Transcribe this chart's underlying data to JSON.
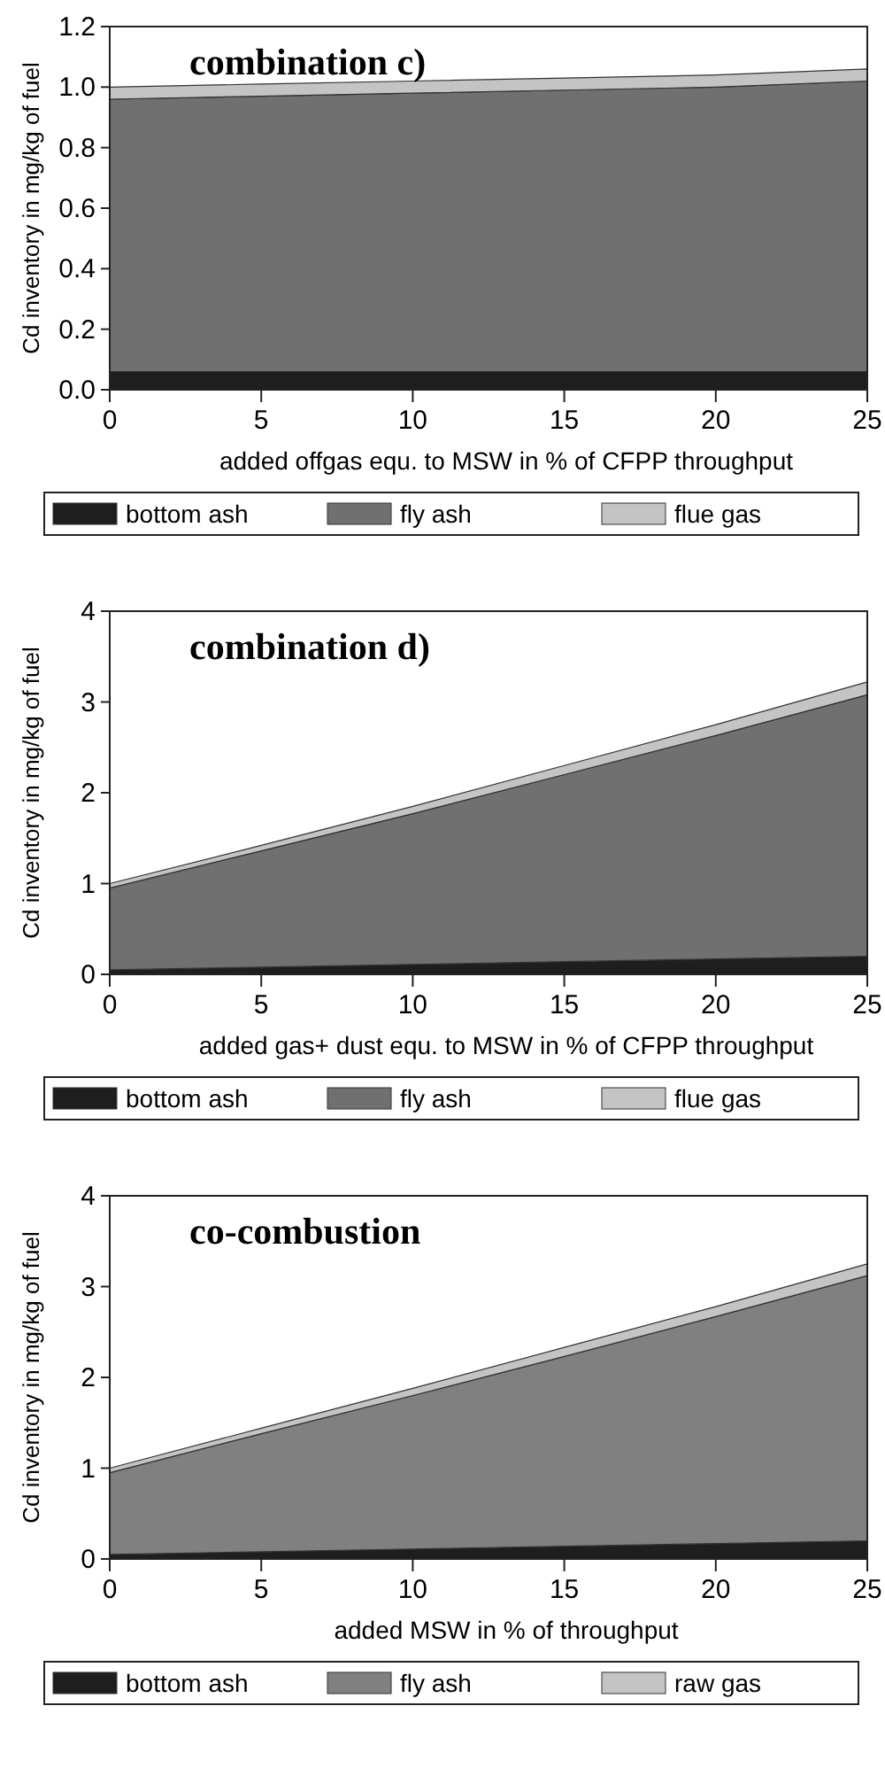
{
  "chart_data": [
    {
      "type": "area",
      "stacked": true,
      "title": "combination c)",
      "xlabel": "added offgas equ. to MSW in % of CFPP throughput",
      "ylabel": "Cd inventory in mg/kg of fuel",
      "x": [
        0,
        5,
        10,
        15,
        20,
        25
      ],
      "xlim": [
        0,
        25
      ],
      "ylim": [
        0,
        1.2
      ],
      "xticks": [
        0,
        5,
        10,
        15,
        20,
        25
      ],
      "yticks": [
        {
          "value": 0,
          "label": "0.0"
        },
        0.2,
        0.4,
        0.6,
        0.8,
        {
          "value": 1,
          "label": "1.0"
        },
        1.2
      ],
      "legend": "bottom",
      "series": [
        {
          "name": "bottom ash",
          "color": "#1e1e1e",
          "values": [
            0.06,
            0.06,
            0.06,
            0.06,
            0.06,
            0.06
          ]
        },
        {
          "name": "fly ash",
          "color": "#707070",
          "values": [
            0.9,
            0.91,
            0.92,
            0.93,
            0.94,
            0.96
          ]
        },
        {
          "name": "flue gas",
          "color": "#c4c4c4",
          "values": [
            0.04,
            0.04,
            0.04,
            0.04,
            0.04,
            0.04
          ]
        }
      ]
    },
    {
      "type": "area",
      "stacked": true,
      "title": "combination d)",
      "xlabel": "added gas+ dust equ. to MSW in % of CFPP throughput",
      "ylabel": "Cd inventory in mg/kg of fuel",
      "x": [
        0,
        5,
        10,
        15,
        20,
        25
      ],
      "xlim": [
        0,
        25
      ],
      "ylim": [
        0,
        4
      ],
      "xticks": [
        0,
        5,
        10,
        15,
        20,
        25
      ],
      "yticks": [
        0,
        1,
        2,
        3,
        4
      ],
      "legend": "bottom",
      "series": [
        {
          "name": "bottom ash",
          "color": "#1e1e1e",
          "values": [
            0.05,
            0.08,
            0.11,
            0.14,
            0.17,
            0.2
          ]
        },
        {
          "name": "fly ash",
          "color": "#707070",
          "values": [
            0.9,
            1.28,
            1.66,
            2.06,
            2.46,
            2.88
          ]
        },
        {
          "name": "flue gas",
          "color": "#c4c4c4",
          "values": [
            0.05,
            0.06,
            0.08,
            0.1,
            0.12,
            0.14
          ]
        }
      ]
    },
    {
      "type": "area",
      "stacked": true,
      "title": "co-combustion",
      "xlabel": "added MSW in % of throughput",
      "ylabel": "Cd inventory in mg/kg of fuel",
      "x": [
        0,
        5,
        10,
        15,
        20,
        25
      ],
      "xlim": [
        0,
        25
      ],
      "ylim": [
        0,
        4
      ],
      "xticks": [
        0,
        5,
        10,
        15,
        20,
        25
      ],
      "yticks": [
        0,
        1,
        2,
        3,
        4
      ],
      "legend": "bottom",
      "series": [
        {
          "name": "bottom ash",
          "color": "#1e1e1e",
          "values": [
            0.05,
            0.08,
            0.11,
            0.14,
            0.17,
            0.2
          ]
        },
        {
          "name": "fly ash",
          "color": "#808080",
          "values": [
            0.9,
            1.3,
            1.69,
            2.09,
            2.5,
            2.92
          ]
        },
        {
          "name": "raw gas",
          "color": "#c4c4c4",
          "values": [
            0.05,
            0.06,
            0.08,
            0.1,
            0.11,
            0.13
          ]
        }
      ]
    }
  ]
}
